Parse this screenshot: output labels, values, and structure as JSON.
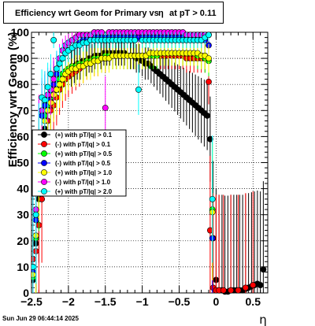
{
  "title": {
    "part1": "Efficiency wrt Geom for Primary vs",
    "eta_symbol": "η",
    "part2": "at pT > 0.11"
  },
  "timestamp": "Sun Jun 29 06:44:14 2025",
  "chart_data": {
    "type": "scatter",
    "title": "Efficiency wrt Geom for Primary vs η at pT > 0.11",
    "xlabel": "η",
    "ylabel": "Efficiency wrt Geom (%)",
    "xlim": [
      -2.5,
      0.7
    ],
    "ylim": [
      0,
      100
    ],
    "x_ticks": [
      -2.5,
      -2,
      -1.5,
      -1,
      -0.5,
      0,
      0.5
    ],
    "x_tick_labels": [
      "−2.5",
      "−2",
      "−1.5",
      "−1",
      "−0.5",
      "0",
      "0.5"
    ],
    "y_ticks": [
      0,
      10,
      20,
      30,
      40,
      50,
      60,
      70,
      80,
      90,
      100
    ],
    "grid": true,
    "legend_position": "left-middle",
    "series": [
      {
        "name": "(+) with pT/|q| > 0.1",
        "color": "#000000",
        "x": [
          -2.48,
          -2.44,
          -2.4,
          -2.36,
          -2.32,
          -2.28,
          -2.24,
          -2.2,
          -2.16,
          -2.12,
          -2.08,
          -2.04,
          -2.0,
          -1.96,
          -1.92,
          -1.88,
          -1.84,
          -1.8,
          -1.76,
          -1.72,
          -1.68,
          -1.64,
          -1.6,
          -1.56,
          -1.52,
          -1.48,
          -1.44,
          -1.4,
          -1.36,
          -1.32,
          -1.28,
          -1.24,
          -1.2,
          -1.16,
          -1.12,
          -1.08,
          -1.04,
          -1.0,
          -0.96,
          -0.92,
          -0.88,
          -0.84,
          -0.8,
          -0.76,
          -0.72,
          -0.68,
          -0.64,
          -0.6,
          -0.56,
          -0.52,
          -0.48,
          -0.44,
          -0.4,
          -0.36,
          -0.32,
          -0.28,
          -0.24,
          -0.2,
          -0.16,
          -0.12,
          -0.08,
          -0.04,
          0.0,
          0.04,
          0.08,
          0.12,
          0.16,
          0.2,
          0.24,
          0.28,
          0.32,
          0.36,
          0.4,
          0.44,
          0.48,
          0.52,
          0.56,
          0.6,
          0.64
        ],
        "y": [
          5,
          19,
          36,
          53,
          63,
          70,
          74,
          77,
          80,
          82,
          84,
          85,
          86,
          86,
          87,
          88,
          88,
          89,
          89,
          90,
          90,
          91,
          91,
          91,
          92,
          92,
          92,
          92,
          92,
          92,
          92,
          92,
          91,
          91,
          91,
          90,
          90,
          89,
          88,
          88,
          87,
          86,
          85,
          84,
          83,
          82,
          81,
          80,
          79,
          78,
          77,
          76,
          75,
          74,
          73,
          72,
          71,
          70,
          69,
          68,
          59,
          21,
          5,
          1,
          1,
          0.5,
          0.5,
          1,
          1,
          1,
          1,
          1,
          1.5,
          2,
          2.5,
          3,
          3.5,
          3,
          9
        ]
      },
      {
        "name": "(-) with pT/|q| > 0.1",
        "color": "#ff0000",
        "x": [
          -2.48,
          -2.44,
          -2.4,
          -2.36,
          -2.32,
          -2.28,
          -2.24,
          -2.2,
          -2.16,
          -2.12,
          -2.08,
          -2.04,
          -2.0,
          -1.95,
          -1.9,
          -1.85,
          -1.8,
          -1.75,
          -1.7,
          -1.65,
          -1.6,
          -1.55,
          -1.5,
          -1.45,
          -1.4,
          -1.35,
          -1.3,
          -1.25,
          -1.2,
          -1.15,
          -1.1,
          -1.05,
          -1.0,
          -0.95,
          -0.9,
          -0.85,
          -0.8,
          -0.75,
          -0.7,
          -0.65,
          -0.6,
          -0.55,
          -0.5,
          -0.45,
          -0.4,
          -0.35,
          -0.3,
          -0.25,
          -0.2,
          -0.15,
          -0.1,
          -0.08,
          -0.04,
          0.0,
          0.04,
          0.1,
          0.2,
          0.3,
          0.4,
          0.5
        ],
        "y": [
          13,
          16,
          26,
          36,
          60,
          66,
          70,
          72,
          75,
          78,
          80,
          82,
          83,
          84,
          85,
          86,
          87,
          88,
          88,
          89,
          89,
          90,
          90,
          91,
          91,
          91,
          91,
          91,
          91,
          91,
          91,
          91,
          91,
          91,
          91,
          91,
          91,
          91,
          91,
          91,
          91,
          91,
          91,
          91,
          90,
          90,
          90,
          90,
          90,
          90,
          81,
          24,
          2,
          1,
          1,
          1,
          1,
          1,
          2,
          3
        ]
      },
      {
        "name": "(+) with pT/|q| > 0.5",
        "color": "#00ff00",
        "x": [
          -2.48,
          -2.44,
          -2.4,
          -2.36,
          -2.32,
          -2.28,
          -2.24,
          -2.2,
          -2.16,
          -2.12,
          -2.08,
          -2.04,
          -2.0,
          -1.95,
          -1.9,
          -1.85,
          -1.8,
          -1.75,
          -1.7,
          -1.65,
          -1.6,
          -1.55,
          -1.5,
          -1.45,
          -1.4,
          -1.35,
          -1.3,
          -1.25,
          -1.2,
          -1.15,
          -1.1,
          -1.05,
          -1.0,
          -0.95,
          -0.9,
          -0.85,
          -0.8,
          -0.75,
          -0.7,
          -0.65,
          -0.6,
          -0.55,
          -0.5,
          -0.45,
          -0.4,
          -0.35,
          -0.3,
          -0.25,
          -0.2,
          -0.15,
          -0.1,
          -0.05
        ],
        "y": [
          6,
          21,
          45,
          61,
          68,
          72,
          75,
          78,
          80,
          82,
          84,
          85,
          86,
          87,
          87,
          88,
          88,
          89,
          89,
          90,
          90,
          90,
          91,
          91,
          91,
          91,
          91,
          91,
          91,
          91,
          91,
          91,
          91,
          91,
          91,
          91,
          91,
          92,
          92,
          92,
          92,
          92,
          92,
          92,
          92,
          92,
          92,
          91,
          91,
          90,
          89,
          32
        ]
      },
      {
        "name": "(-) with pT/|q| > 0.5",
        "color": "#0000ff",
        "x": [
          -2.48,
          -2.44,
          -2.4,
          -2.36,
          -2.32,
          -2.28,
          -2.24,
          -2.2,
          -2.16,
          -2.12,
          -2.08,
          -2.04,
          -2.0,
          -1.95,
          -1.9,
          -1.85,
          -1.8,
          -1.75,
          -1.7,
          -1.65,
          -1.6,
          -1.55,
          -1.5,
          -1.45,
          -1.4,
          -1.35,
          -1.3,
          -1.25,
          -1.2,
          -1.15,
          -1.1,
          -1.05,
          -1.0,
          -0.95,
          -0.9,
          -0.85,
          -0.8,
          -0.75,
          -0.7,
          -0.65,
          -0.6,
          -0.55,
          -0.5,
          -0.45,
          -0.4,
          -0.35,
          -0.3,
          -0.25,
          -0.2,
          -0.15,
          -0.1,
          -0.05
        ],
        "y": [
          8,
          28,
          57,
          68,
          72,
          74,
          76,
          80,
          84,
          88,
          90,
          92,
          93,
          94,
          95,
          96,
          97,
          97,
          97,
          98,
          98,
          98,
          98,
          98,
          98,
          98,
          98,
          98,
          98,
          98,
          98,
          98,
          98,
          98,
          98,
          98,
          98,
          98,
          98,
          98,
          98,
          98,
          98,
          98,
          98,
          98,
          98,
          98,
          97,
          97,
          95,
          21
        ]
      },
      {
        "name": "(+) with pT/|q| > 1.0",
        "color": "#ffff00",
        "x": [
          -2.48,
          -2.44,
          -2.4,
          -2.36,
          -2.32,
          -2.28,
          -2.24,
          -2.2,
          -2.16,
          -2.12,
          -2.08,
          -2.04,
          -2.0,
          -1.95,
          -1.9,
          -1.85,
          -1.8,
          -1.75,
          -1.7,
          -1.65,
          -1.6,
          -1.55,
          -1.5,
          -1.45,
          -1.4,
          -1.35,
          -1.3,
          -1.25,
          -1.2,
          -1.15,
          -1.1,
          -1.05,
          -1.0,
          -0.95,
          -0.9,
          -0.85,
          -0.8,
          -0.75,
          -0.7,
          -0.65,
          -0.6,
          -0.55,
          -0.5,
          -0.45,
          -0.4,
          -0.35,
          -0.3,
          -0.25,
          -0.2,
          -0.15,
          -0.1,
          -0.05
        ],
        "y": [
          7,
          22,
          48,
          60,
          66,
          70,
          73,
          76,
          78,
          80,
          82,
          84,
          85,
          86,
          86,
          87,
          87,
          88,
          88,
          89,
          89,
          90,
          90,
          90,
          91,
          91,
          91,
          91,
          91,
          91,
          91,
          91,
          91,
          91,
          92,
          92,
          92,
          92,
          92,
          92,
          92,
          92,
          92,
          92,
          92,
          92,
          92,
          92,
          91,
          91,
          90,
          31
        ]
      },
      {
        "name": "(-) with pT/|q| > 1.0",
        "color": "#ff00ff",
        "x": [
          -2.48,
          -2.44,
          -2.4,
          -2.36,
          -2.32,
          -2.28,
          -2.24,
          -2.2,
          -2.16,
          -2.12,
          -2.08,
          -2.04,
          -2.0,
          -1.95,
          -1.9,
          -1.85,
          -1.8,
          -1.75,
          -1.7,
          -1.65,
          -1.6,
          -1.55,
          -1.5,
          -1.45,
          -1.4,
          -1.35,
          -1.3,
          -1.25,
          -1.2,
          -1.15,
          -1.1,
          -1.05,
          -1.0,
          -0.95,
          -0.9,
          -0.85,
          -0.8,
          -0.75,
          -0.7,
          -0.65,
          -0.6,
          -0.55,
          -0.5,
          -0.45,
          -0.4,
          -0.35,
          -0.3,
          -0.25,
          -0.2,
          -0.15,
          -0.1
        ],
        "y": [
          10,
          32,
          60,
          70,
          74,
          76,
          78,
          82,
          86,
          90,
          93,
          95,
          96,
          97,
          98,
          99,
          99,
          99,
          99,
          100,
          100,
          100,
          71,
          100,
          100,
          100,
          100,
          100,
          100,
          100,
          100,
          100,
          100,
          100,
          100,
          100,
          100,
          100,
          100,
          100,
          100,
          100,
          100,
          100,
          99,
          99,
          99,
          99,
          99,
          99,
          99
        ]
      },
      {
        "name": "(+) with pT/|q| > 2.0",
        "color": "#00ffff",
        "x": [
          -2.48,
          -2.44,
          -2.4,
          -2.36,
          -2.32,
          -2.28,
          -2.24,
          -2.2,
          -2.16,
          -2.12,
          -2.08,
          -2.04,
          -2.0,
          -1.95,
          -1.9,
          -1.85,
          -1.8,
          -1.75,
          -1.7,
          -1.65,
          -1.6,
          -1.55,
          -1.5,
          -1.45,
          -1.4,
          -1.35,
          -1.3,
          -1.25,
          -1.2,
          -1.15,
          -1.1,
          -1.05,
          -1.0,
          -0.95,
          -0.9,
          -0.85,
          -0.8,
          -0.75,
          -0.7,
          -0.65,
          -0.6,
          -0.55,
          -0.5,
          -0.45,
          -0.4,
          -0.35,
          -0.3,
          -0.25,
          -0.2,
          -0.15,
          -0.1,
          -0.05
        ],
        "y": [
          10,
          30,
          55,
          75,
          74,
          79,
          84,
          97,
          86,
          88,
          90,
          92,
          93,
          94,
          95,
          95,
          96,
          96,
          97,
          97,
          97,
          97,
          97,
          97,
          97,
          97,
          97,
          97,
          97,
          97,
          97,
          78,
          97,
          97,
          97,
          97,
          97,
          97,
          97,
          97,
          97,
          97,
          97,
          97,
          97,
          97,
          97,
          97,
          97,
          98,
          99,
          36
        ]
      }
    ]
  }
}
